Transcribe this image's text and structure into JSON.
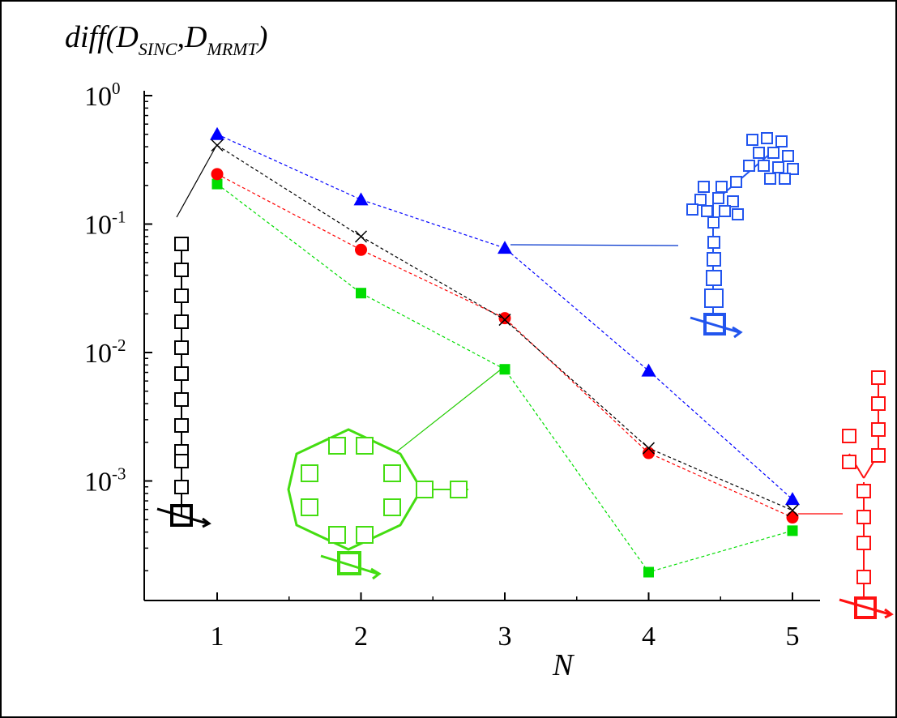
{
  "chart_data": {
    "type": "line",
    "ylabel": {
      "base": "diff(D",
      "sub1": "SINC",
      "comma": ",D",
      "sub2": "MRMT",
      "close": ")"
    },
    "xlabel": "N",
    "x": [
      1,
      2,
      3,
      4,
      5
    ],
    "xlim": [
      0.5,
      5.2
    ],
    "ylim": [
      0.00018,
      1
    ],
    "yscale": "log",
    "x_ticks": [
      "1",
      "2",
      "3",
      "4",
      "5"
    ],
    "y_ticks": [
      {
        "value": 0.001,
        "base": "10",
        "exp": "-3"
      },
      {
        "value": 0.01,
        "base": "10",
        "exp": "-2"
      },
      {
        "value": 0.1,
        "base": "10",
        "exp": "-1"
      },
      {
        "value": 1,
        "base": "10",
        "exp": "0"
      }
    ],
    "grid": false,
    "legend": "none",
    "series": [
      {
        "color": "#0000ff",
        "marker": "triangle",
        "values": [
          0.5,
          0.155,
          0.065,
          0.0072,
          0.00072
        ]
      },
      {
        "color": "#000000",
        "marker": "x",
        "values": [
          0.41,
          0.08,
          0.018,
          0.0018,
          0.00059
        ]
      },
      {
        "color": "#ff0000",
        "marker": "circle",
        "values": [
          0.245,
          0.063,
          0.0185,
          0.00165,
          0.00052
        ]
      },
      {
        "color": "#00dd00",
        "marker": "square",
        "values": [
          0.205,
          0.029,
          0.0074,
          0.000195,
          0.00041
        ]
      }
    ]
  },
  "colors": {
    "black_structure": "#000000",
    "green_structure": "#33dd00",
    "blue_structure": "#1a4fe0",
    "red_structure": "#ff0000"
  }
}
